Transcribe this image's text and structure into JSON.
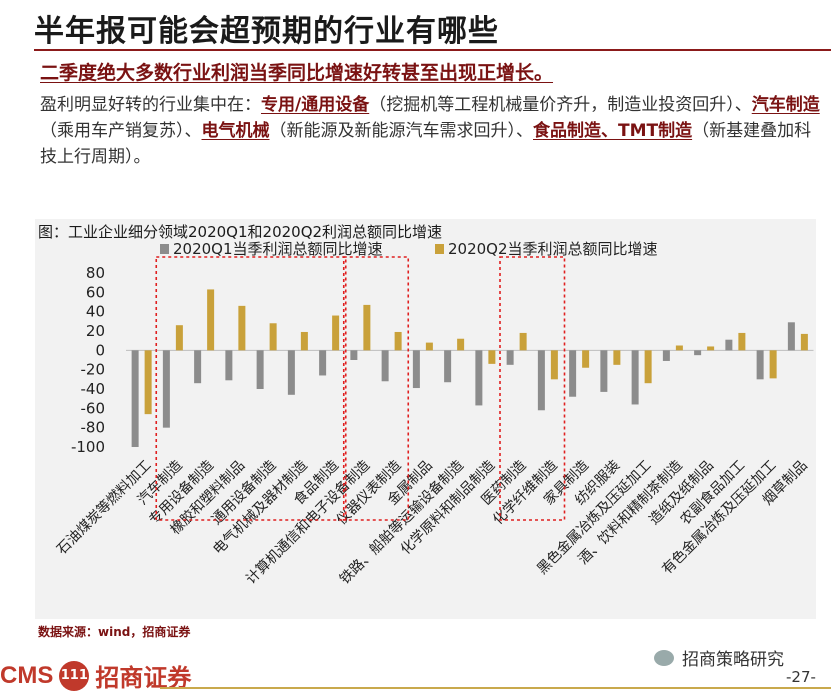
{
  "header": {
    "title": "半年报可能会超预期的行业有哪些",
    "subtitle": "二季度绝大多数行业利润当季同比增速好转甚至出现正增长。"
  },
  "body": {
    "p1": "盈利明显好转的行业集中在：",
    "h1": "专用/通用设备",
    "p2": "（挖掘机等工程机械量价齐升，制造业投资回升）、",
    "h2": "汽车制造",
    "p3": "（乘用车产销复苏）、",
    "h3": "电气机械",
    "p4": "（新能源及新能源汽车需求回升）、",
    "h4": "食品制造、TMT制造",
    "p5": "（新基建叠加科技上行周期）。"
  },
  "chart_data": {
    "type": "bar",
    "title": "图：工业企业细分领域2020Q1和2020Q2利润总额同比增速",
    "ylim": [
      -100,
      80
    ],
    "yticks": [
      80,
      60,
      40,
      20,
      0,
      -20,
      -40,
      -60,
      -80,
      -100
    ],
    "categories": [
      "石油煤炭等燃料加工",
      "汽车制造",
      "专用设备制造",
      "橡胶和塑料制品",
      "通用设备制造",
      "电气机械及器材制造",
      "食品制造",
      "计算机通信和电子设备制造",
      "仪器仪表制造",
      "金属制品",
      "铁路、船舶等运输设备制造",
      "化学原料和制品制造",
      "医药制造",
      "化学纤维制造",
      "家具制造",
      "纺织服装",
      "黑色金属冶炼及压延加工",
      "酒、饮料和精制茶制造",
      "造纸及纸制品",
      "农副食品加工",
      "有色金属冶炼及压延加工",
      "烟草制品"
    ],
    "series": [
      {
        "name": "2020Q1当季利润总额同比增速",
        "color": "#8c8c8c",
        "values": [
          -100,
          -80,
          -34,
          -31,
          -40,
          -46,
          -26,
          -10,
          -32,
          -39,
          -33,
          -57,
          -15,
          -62,
          -48,
          -43,
          -56,
          -11,
          -5,
          11,
          -30,
          29
        ]
      },
      {
        "name": "2020Q2当季利润总额同比增速",
        "color": "#c9a13a",
        "values": [
          -66,
          26,
          63,
          46,
          28,
          19,
          36,
          47,
          19,
          8,
          12,
          -14,
          18,
          -30,
          -18,
          -15,
          -34,
          5,
          4,
          18,
          -29,
          17
        ]
      }
    ],
    "highlight_groups": [
      [
        1,
        6
      ],
      [
        7,
        8
      ],
      [
        12,
        13
      ]
    ]
  },
  "footer": {
    "source": "数据来源：wind，招商证券",
    "logo_en": "CMS",
    "logo_mark": "111",
    "logo_cn": "招商证券",
    "wechat": "招商策略研究",
    "page": "-27-"
  }
}
